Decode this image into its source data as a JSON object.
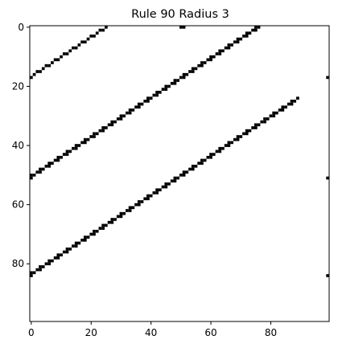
{
  "chart_data": {
    "type": "heatmap",
    "title": "Rule 90 Radius 3",
    "xlabel": "",
    "ylabel": "",
    "grid": false,
    "xlim": [
      -0.5,
      99.5
    ],
    "ylim": [
      99.5,
      -0.5
    ],
    "x_ticks": [
      0,
      20,
      40,
      60,
      80
    ],
    "y_ticks": [
      0,
      20,
      40,
      60,
      80
    ],
    "x_tick_labels": [
      "0",
      "20",
      "40",
      "60",
      "80"
    ],
    "y_tick_labels": [
      "0",
      "20",
      "40",
      "60",
      "80"
    ],
    "colormap": {
      "0": "#ffffff",
      "1": "#000000"
    },
    "pattern": "diagonal bands of paired black cells drifting left by 3 cells every 2 rows (one cell per row up, wrapping horizontally)",
    "band_seeds": [
      {
        "row": 0,
        "col": 50
      },
      {
        "row": 17,
        "col": 99
      },
      {
        "row": 50,
        "col": 0
      },
      {
        "row": 51,
        "col": 99
      },
      {
        "row": 83,
        "col": 0
      },
      {
        "row": 84,
        "col": 99
      }
    ],
    "period_rows": 33
  },
  "colors": {
    "on_cell": "#000000",
    "off_cell": "#ffffff",
    "frame": "#000000"
  }
}
